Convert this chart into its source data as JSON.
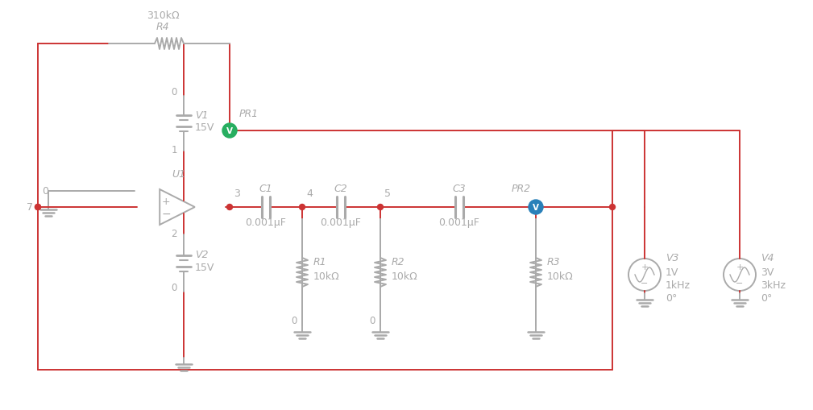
{
  "bg_color": "#ffffff",
  "line_color": "#cc3333",
  "comp_color": "#aaaaaa",
  "text_color": "#aaaaaa",
  "node_color": "#cc3333",
  "green_probe": "#27ae60",
  "blue_probe": "#2980b9",
  "components": {
    "R4": {
      "label": "R4",
      "value": "310kΩ"
    },
    "V1": {
      "label": "V1",
      "value": "15V"
    },
    "V2": {
      "label": "V2",
      "value": "15V"
    },
    "U1": {
      "label": "U1"
    },
    "C1": {
      "label": "C1",
      "value": "0.001μF"
    },
    "C2": {
      "label": "C2",
      "value": "0.001μF"
    },
    "C3": {
      "label": "C3",
      "value": "0.001μF"
    },
    "R1": {
      "label": "R1",
      "value": "10kΩ"
    },
    "R2": {
      "label": "R2",
      "value": "10kΩ"
    },
    "R3": {
      "label": "R3",
      "value": "10kΩ"
    },
    "V3": {
      "label": "V3",
      "lines": [
        "1V",
        "1kHz",
        "0°"
      ]
    },
    "V4": {
      "label": "V4",
      "lines": [
        "3V",
        "3kHz",
        "0°"
      ]
    },
    "PR1": {
      "label": "PR1"
    },
    "PR2": {
      "label": "PR2"
    }
  }
}
